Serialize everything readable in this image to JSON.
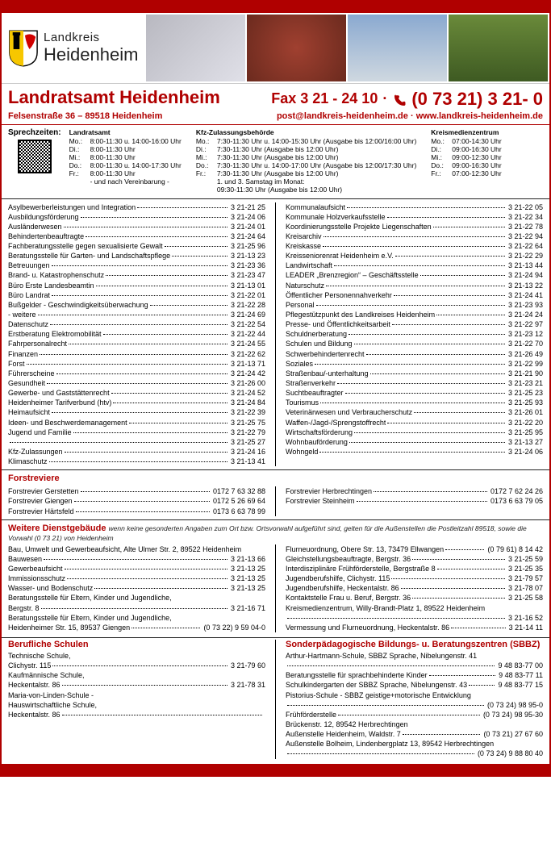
{
  "brand": {
    "line1": "Landkreis",
    "line2": "Heidenheim"
  },
  "title": {
    "name": "Landratsamt Heidenheim",
    "fax_lbl": "Fax 3 21 - 24 10",
    "dot": "·",
    "phone": "(0 73 21) 3 21- 0",
    "address": "Felsenstraße 36 – 89518 Heidenheim",
    "email": "post@landkreis-heidenheim.de",
    "web": "www.landkreis-heidenheim.de"
  },
  "hours": {
    "label": "Sprechzeiten:",
    "cols": [
      {
        "h": "Landratsamt",
        "rows": [
          [
            "Mo.:",
            "8:00-11:30 u. 14:00-16:00 Uhr"
          ],
          [
            "Di.:",
            "8:00-11:30 Uhr"
          ],
          [
            "Mi.:",
            "8:00-11:30 Uhr"
          ],
          [
            "Do.:",
            "8:00-11:30 u. 14:00-17:30 Uhr"
          ],
          [
            "Fr.:",
            "8:00-11:30 Uhr"
          ],
          [
            "",
            "- und nach Vereinbarung -"
          ]
        ]
      },
      {
        "h": "Kfz-Zulassungsbehörde",
        "rows": [
          [
            "Mo.:",
            "7:30-11:30 Uhr u. 14:00-15:30 Uhr (Ausgabe bis 12:00/16:00 Uhr)"
          ],
          [
            "Di.:",
            "7:30-11:30 Uhr (Ausgabe bis 12:00 Uhr)"
          ],
          [
            "Mi.:",
            "7:30-11:30 Uhr (Ausgabe bis 12:00 Uhr)"
          ],
          [
            "Do.:",
            "7:30-11:30 Uhr u. 14:00-17:00 Uhr (Ausgabe bis 12:00/17:30 Uhr)"
          ],
          [
            "Fr.:",
            "7:30-11:30 Uhr (Ausgabe bis 12:00 Uhr)"
          ],
          [
            "",
            "1. und 3. Samstag im Monat:"
          ],
          [
            "",
            "          09:30-11:30 Uhr (Ausgabe bis 12:00 Uhr)"
          ]
        ]
      },
      {
        "h": "Kreismedienzentrum",
        "rows": [
          [
            "Mo.:",
            "07:00-14:30 Uhr"
          ],
          [
            "Di.:",
            "09:00-16:30 Uhr"
          ],
          [
            "Mi.:",
            "09:00-12:30 Uhr"
          ],
          [
            "Do.:",
            "09:00-16:30 Uhr"
          ],
          [
            "Fr.:",
            "07:00-12:30 Uhr"
          ]
        ]
      }
    ]
  },
  "dir_left": [
    [
      "Asylbewerberleistungen und Integration",
      "3 21-21 25"
    ],
    [
      "Ausbildungsförderung",
      "3 21-24 06"
    ],
    [
      "Ausländerwesen",
      "3 21-24 01"
    ],
    [
      "Behindertenbeauftragte",
      "3 21-24 64"
    ],
    [
      "Fachberatungsstelle gegen sexualisierte Gewalt",
      "3 21-25 96"
    ],
    [
      "Beratungsstelle für Garten- und Landschaftspflege",
      "3 21-13 23"
    ],
    [
      "Betreuungen",
      "3 21-23 36"
    ],
    [
      "Brand- u. Katastrophenschutz",
      "3 21-23 47"
    ],
    [
      "Büro Erste Landesbeamtin",
      "3 21-13 01"
    ],
    [
      "Büro Landrat",
      "3 21-22 01"
    ],
    [
      "Bußgelder - Geschwindigkeitsüberwachung",
      "3 21-22 28"
    ],
    [
      "          - weitere",
      "3 21-24 69"
    ],
    [
      "Datenschutz",
      "3 21-22 54"
    ],
    [
      "Erstberatung Elektromobilität",
      "3 21-22 44"
    ],
    [
      "Fahrpersonalrecht",
      "3 21-24 55"
    ],
    [
      "Finanzen",
      "3 21-22 62"
    ],
    [
      "Forst",
      "3 21-13 71"
    ],
    [
      "Führerscheine",
      "3 21-24 42"
    ],
    [
      "Gesundheit",
      "3 21-26 00"
    ],
    [
      "Gewerbe- und Gaststättenrecht",
      "3 21-24 52"
    ],
    [
      "Heidenheimer Tarifverbund (htv)",
      "3 21-24 84"
    ],
    [
      "Heimaufsicht",
      "3 21-22 39"
    ],
    [
      "Ideen- und Beschwerdemanagement",
      "3 21-25 75"
    ],
    [
      "Jugend und Familie",
      "3 21-22 79"
    ],
    [
      "",
      "3 21-25 27"
    ],
    [
      "Kfz-Zulassungen",
      "3 21-24 16"
    ],
    [
      "Klimaschutz",
      "3 21-13 41"
    ]
  ],
  "dir_right": [
    [
      "Kommunalaufsicht",
      "3 21-22 05"
    ],
    [
      "Kommunale Holzverkaufsstelle",
      "3 21-22 34"
    ],
    [
      "Koordinierungsstelle Projekte Liegenschaften",
      "3 21-22 78"
    ],
    [
      "Kreisarchiv",
      "3 21-22 94"
    ],
    [
      "Kreiskasse",
      "3 21-22 64"
    ],
    [
      "Kreisseniorenrat Heidenheim e.V.",
      "3 21-22 29"
    ],
    [
      "Landwirtschaft",
      "3 21-13 44"
    ],
    [
      "LEADER „Brenzregion“ – Geschäftsstelle",
      "3 21-24 94"
    ],
    [
      "Naturschutz",
      "3 21-13 22"
    ],
    [
      "Öffentlicher Personennahverkehr",
      "3 21-24 41"
    ],
    [
      "Personal",
      "3 21-23 93"
    ],
    [
      "Pflegestützpunkt des Landkreises Heidenheim",
      "3 21-24 24"
    ],
    [
      "Presse- und Öffentlichkeitsarbeit",
      "3 21-22 97"
    ],
    [
      "Schuldnerberatung",
      "3 21-23 12"
    ],
    [
      "Schulen und Bildung",
      "3 21-22 70"
    ],
    [
      "Schwerbehindertenrecht",
      "3 21-26 49"
    ],
    [
      "Soziales",
      "3 21-22 99"
    ],
    [
      "Straßenbau/-unterhaltung",
      "3 21-21 90"
    ],
    [
      "Straßenverkehr",
      "3 21-23 21"
    ],
    [
      "Suchtbeauftragter",
      "3 21-25 23"
    ],
    [
      "Tourismus",
      "3 21-25 93"
    ],
    [
      "Veterinärwesen und Verbraucherschutz",
      "3 21-26 01"
    ],
    [
      "Waffen-/Jagd-/Sprengstoffrecht",
      "3 21-22 20"
    ],
    [
      "Wirtschaftsförderung",
      "3 21-25 95"
    ],
    [
      "Wohnbauförderung",
      "3 21-13 27"
    ],
    [
      "Wohngeld",
      "3 21-24 06"
    ]
  ],
  "forst": {
    "title": "Forstreviere",
    "left": [
      [
        "Forstrevier Gerstetten",
        "0172 7 63 32 88"
      ],
      [
        "Forstrevier Giengen",
        "0172 5 26 69 64"
      ],
      [
        "Forstrevier Härtsfeld",
        "0173 6 63 78 99"
      ]
    ],
    "right": [
      [
        "Forstrevier Herbrechtingen",
        "0172 7 62 24 26"
      ],
      [
        "Forstrevier Steinheim",
        "0173 6 63 79 05"
      ]
    ]
  },
  "weitere": {
    "title": "Weitere Dienstgebäude",
    "sub": "wenn keine gesonderten Angaben zum Ort bzw. Ortsvorwahl aufgeführt sind, gelten für die Außenstellen die Postleitzahl 89518, sowie die Vorwahl (0 73 21) von Heidenheim",
    "left_plain1": "Bau, Umwelt und Gewerbeaufsicht, Alte Ulmer Str. 2, 89522 Heidenheim",
    "left_entries1": [
      [
        "   Bauwesen",
        "3 21-13 66"
      ],
      [
        "   Gewerbeaufsicht",
        "3 21-13 25"
      ],
      [
        "   Immissionsschutz",
        "3 21-13 25"
      ],
      [
        "   Wasser- und Bodenschutz",
        "3 21-13 25"
      ]
    ],
    "left_plain2": "Beratungsstelle für Eltern, Kinder und Jugendliche,",
    "left_entries2": [
      [
        "   Bergstr. 8",
        "3 21-16 71"
      ]
    ],
    "left_plain3": "Beratungsstelle für Eltern, Kinder und Jugendliche,",
    "left_entries3": [
      [
        "   Heidenheimer Str. 15, 89537 Giengen",
        "(0 73 22) 9 59 04-0"
      ]
    ],
    "right": [
      [
        "Flurneuordnung, Obere Str. 13, 73479 Ellwangen",
        "(0 79 61) 8 14 42"
      ],
      [
        "Gleichstellungsbeauftragte, Bergstr. 36",
        "3 21-25 59"
      ],
      [
        "Interdisziplinäre Frühförderstelle, Bergstraße 8",
        "3 21-25 35"
      ],
      [
        "Jugendberufshilfe, Clichystr. 115",
        "3 21-79 57"
      ],
      [
        "Jugendberufshilfe, Heckentalstr. 86",
        "3 21-78 07"
      ],
      [
        "Kontaktstelle Frau u. Beruf, Bergstr. 36",
        "3 21-25 58"
      ]
    ],
    "right_plain": "Kreismedienzentrum, Willy-Brandt-Platz 1, 89522 Heidenheim",
    "right2": [
      [
        "",
        "3 21-16 52"
      ],
      [
        "Vermessung und Flurneuordnung, Heckentalstr. 86",
        "3 21-14 11"
      ]
    ]
  },
  "schulen": {
    "title_l": "Berufliche Schulen",
    "left": [
      {
        "h": "Technische Schule,",
        "rows": [
          [
            "   Clichystr. 115",
            "3 21-79 60"
          ]
        ]
      },
      {
        "h": "Kaufmännische Schule,",
        "rows": [
          [
            "   Heckentalstr. 86",
            "3 21-78 31"
          ]
        ]
      },
      {
        "h": "Maria-von-Linden-Schule -",
        "sub": "Hauswirtschaftliche Schule,",
        "rows": [
          [
            "   Heckentalstr. 86",
            ""
          ]
        ]
      }
    ],
    "title_r": "Sonderpädagogische Bildungs- u. Beratungszentren (SBBZ)",
    "right_plain1": "Arthur-Hartmann-Schule, SBBZ Sprache, Nibelungenstr. 41",
    "right1": [
      [
        "",
        "9 48 83-77 00"
      ],
      [
        "Beratungsstelle für sprachbehinderte Kinder",
        "9 48 83-77 11"
      ],
      [
        "Schulkindergarten der SBBZ Sprache, Nibelungenstr. 43",
        "9 48 83-77 15"
      ]
    ],
    "right_plain2": "Pistorius-Schule - SBBZ geistige+motorische Entwicklung",
    "right2": [
      [
        "",
        "(0 73 24) 98 95-0"
      ],
      [
        "   Frühförderstelle",
        "(0 73 24) 98 95-30"
      ]
    ],
    "right_plain3": "Brückenstr. 12, 89542 Herbrechtingen",
    "right3": [
      [
        "   Außenstelle Heidenheim, Waldstr. 7",
        "(0 73 21) 27 67 60"
      ]
    ],
    "right_plain4": "   Außenstelle Bolheim, Lindenbergplatz 13, 89542 Herbrechtingen",
    "right4": [
      [
        "",
        "(0 73 24) 9 88 80 40"
      ]
    ]
  },
  "colors": {
    "brand": "#b00000"
  }
}
